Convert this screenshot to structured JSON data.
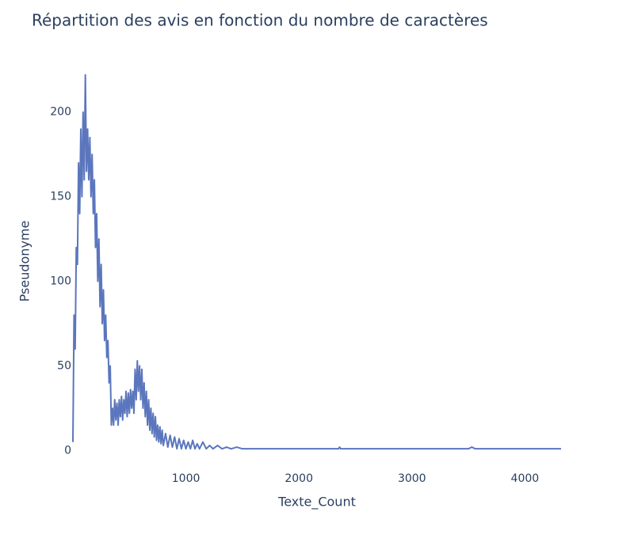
{
  "chart_data": {
    "type": "line",
    "title": "Répartition des avis en fonction du nombre de caractères",
    "x_label": "Texte_Count",
    "y_label": "Pseudonyme",
    "color": "#5b76bd",
    "grid": false,
    "xlim": [
      0,
      4320
    ],
    "ylim": [
      -5,
      234
    ],
    "xticks": [
      1000,
      2000,
      3000,
      4000
    ],
    "yticks": [
      0,
      50,
      100,
      150,
      200
    ],
    "x": [
      0,
      10,
      20,
      30,
      40,
      50,
      60,
      70,
      80,
      90,
      100,
      110,
      120,
      130,
      140,
      150,
      160,
      170,
      180,
      190,
      200,
      210,
      220,
      230,
      240,
      250,
      260,
      270,
      280,
      290,
      300,
      310,
      320,
      330,
      340,
      350,
      360,
      370,
      380,
      390,
      400,
      410,
      420,
      430,
      440,
      450,
      460,
      470,
      480,
      490,
      500,
      510,
      520,
      530,
      540,
      550,
      560,
      570,
      580,
      590,
      600,
      610,
      620,
      630,
      640,
      650,
      660,
      670,
      680,
      690,
      700,
      710,
      720,
      730,
      740,
      750,
      760,
      770,
      780,
      790,
      800,
      820,
      840,
      860,
      880,
      900,
      920,
      940,
      960,
      980,
      1000,
      1020,
      1040,
      1060,
      1080,
      1100,
      1120,
      1150,
      1180,
      1210,
      1240,
      1280,
      1320,
      1360,
      1400,
      1450,
      1500,
      1600,
      1700,
      1800,
      1900,
      2000,
      2100,
      2350,
      2360,
      2370,
      3500,
      3530,
      3560,
      4320
    ],
    "values": [
      5,
      80,
      60,
      120,
      110,
      170,
      140,
      190,
      150,
      200,
      160,
      222,
      165,
      190,
      160,
      185,
      150,
      175,
      140,
      160,
      120,
      140,
      100,
      125,
      85,
      110,
      75,
      95,
      65,
      80,
      55,
      65,
      40,
      50,
      15,
      25,
      15,
      30,
      18,
      28,
      15,
      30,
      20,
      32,
      18,
      30,
      22,
      35,
      20,
      34,
      22,
      36,
      25,
      35,
      22,
      48,
      30,
      53,
      35,
      50,
      30,
      48,
      25,
      40,
      20,
      35,
      15,
      30,
      12,
      25,
      10,
      22,
      8,
      20,
      6,
      15,
      5,
      14,
      4,
      12,
      3,
      10,
      2,
      9,
      2,
      8,
      1,
      7,
      1,
      6,
      1,
      5,
      1,
      6,
      1,
      4,
      1,
      5,
      1,
      3,
      1,
      3,
      1,
      2,
      1,
      2,
      1,
      1,
      1,
      1,
      1,
      1,
      1,
      1,
      2,
      1,
      1,
      2,
      1,
      1
    ]
  }
}
